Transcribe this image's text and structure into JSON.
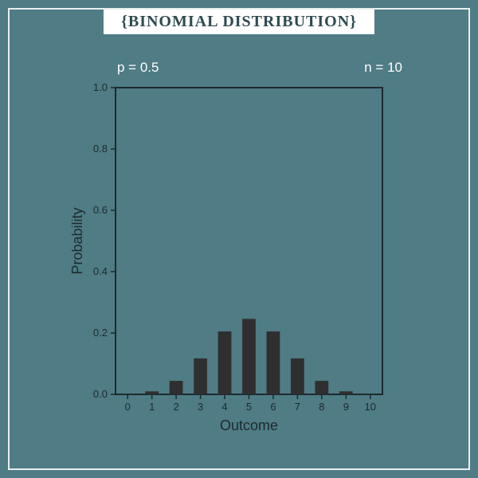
{
  "title": "{BINOMIAL DISTRIBUTION}",
  "params": {
    "p_label": "p = 0.5",
    "n_label": "n = 10"
  },
  "chart": {
    "type": "bar",
    "xlabel": "Outcome",
    "ylabel": "Probability",
    "xlabel_fontsize": 18,
    "ylabel_fontsize": 18,
    "tick_fontsize": 13,
    "categories": [
      "0",
      "1",
      "2",
      "3",
      "4",
      "5",
      "6",
      "7",
      "8",
      "9",
      "10"
    ],
    "values": [
      0.00098,
      0.00977,
      0.04395,
      0.11719,
      0.20508,
      0.24609,
      0.20508,
      0.11719,
      0.04395,
      0.00977,
      0.00098
    ],
    "bar_color": "#2f2f2f",
    "axis_color": "#1c2a2e",
    "grid_color": "#2f4a50",
    "background_color": "#4f7c85",
    "ylim": [
      0.0,
      1.0
    ],
    "ytick_step": 0.2,
    "yticks": [
      "0.0",
      "0.2",
      "0.4",
      "0.6",
      "0.8",
      "1.0"
    ],
    "bar_width": 0.55,
    "spine_width": 2,
    "tick_len": 6,
    "tick_width": 1.5
  },
  "canvas": {
    "outer_border_color": "#e8eeef",
    "outer_border_width": 2,
    "title_bg": "#ffffff",
    "title_color": "#2e4a50",
    "title_fontsize": 20,
    "param_color": "#ffffff",
    "param_fontsize": 17
  }
}
